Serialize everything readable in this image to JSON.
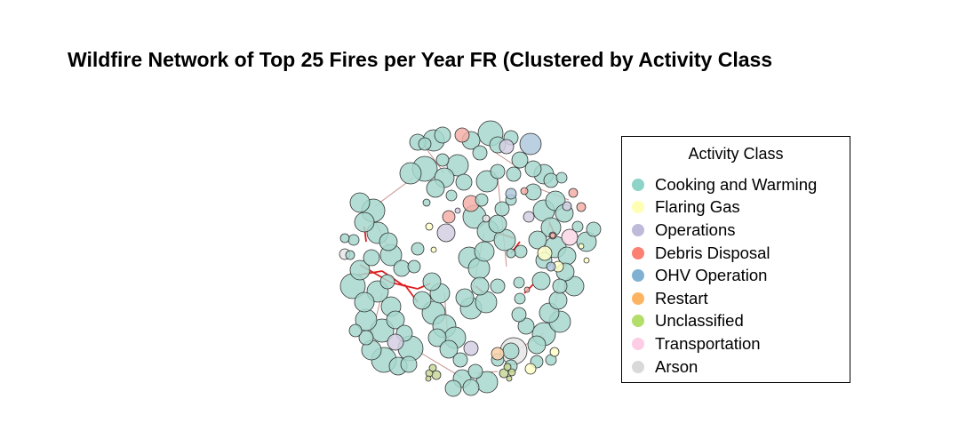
{
  "chart_data": {
    "type": "network",
    "title": "Wildfire Network of Top 25 Fires per Year FR (Clustered by Activity Class",
    "legend": {
      "title": "Activity Class",
      "placement": "right",
      "entries": [
        {
          "label": "Cooking and Warming",
          "color": "#8DD3C7"
        },
        {
          "label": "Flaring Gas",
          "color": "#FFFFB3"
        },
        {
          "label": "Operations",
          "color": "#BEBADA"
        },
        {
          "label": "Debris Disposal",
          "color": "#FB8072"
        },
        {
          "label": "OHV Operation",
          "color": "#80B1D3"
        },
        {
          "label": "Restart",
          "color": "#FDB462"
        },
        {
          "label": "Unclassified",
          "color": "#B3DE69"
        },
        {
          "label": "Transportation",
          "color": "#FCCDE5"
        },
        {
          "label": "Arson",
          "color": "#D9D9D9"
        }
      ]
    },
    "node_colors": {
      "Cooking and Warming": "#A7D8CE",
      "Flaring Gas": "#FFFFC8",
      "Operations": "#D3CFE4",
      "Debris Disposal": "#F5AFA7",
      "OHV Operation": "#AFC8DC",
      "Restart": "#FAD2AA",
      "Unclassified": "#C8D796",
      "Transportation": "#FAD7E6",
      "Arson": "#E6E6E6"
    },
    "edge_colors": {
      "within": "#C88C8C",
      "between": "#DC1E1E"
    },
    "node_outline": "#333333"
  }
}
